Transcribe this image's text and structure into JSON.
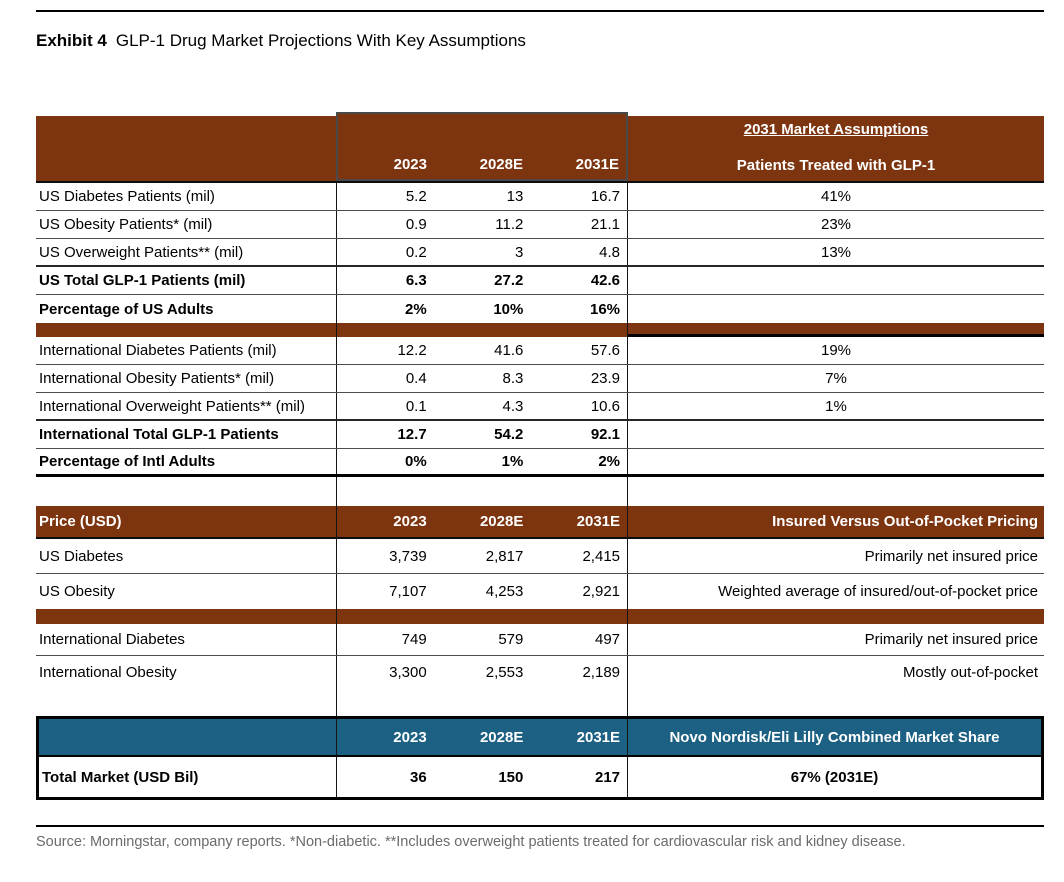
{
  "exhibit": {
    "label": "Exhibit 4",
    "title": "GLP-1 Drug Market Projections With Key Assumptions"
  },
  "columns": {
    "years": [
      "2023",
      "2028E",
      "2031E"
    ]
  },
  "colors": {
    "brick_header": "#7d3510",
    "teal_header": "#1c6083",
    "source_text": "#6b6b6b"
  },
  "patients_section": {
    "assumptions_title": "2031 Market Assumptions",
    "assumptions_subtitle": "Patients Treated with GLP-1",
    "rows": [
      {
        "label": "US Diabetes Patients (mil)",
        "y2023": "5.2",
        "y2028e": "13",
        "y2031e": "16.7",
        "assumption": "41%"
      },
      {
        "label": "US Obesity Patients* (mil)",
        "y2023": "0.9",
        "y2028e": "11.2",
        "y2031e": "21.1",
        "assumption": "23%"
      },
      {
        "label": "US Overweight Patients** (mil)",
        "y2023": "0.2",
        "y2028e": "3",
        "y2031e": "4.8",
        "assumption": "13%"
      },
      {
        "label": "US Total GLP-1 Patients (mil)",
        "y2023": "6.3",
        "y2028e": "27.2",
        "y2031e": "42.6",
        "assumption": ""
      },
      {
        "label": "Percentage of US Adults",
        "y2023": "2%",
        "y2028e": "10%",
        "y2031e": "16%",
        "assumption": ""
      },
      {
        "label": "International Diabetes Patients (mil)",
        "y2023": "12.2",
        "y2028e": "41.6",
        "y2031e": "57.6",
        "assumption": "19%"
      },
      {
        "label": "International Obesity Patients* (mil)",
        "y2023": "0.4",
        "y2028e": "8.3",
        "y2031e": "23.9",
        "assumption": "7%"
      },
      {
        "label": "International Overweight Patients** (mil)",
        "y2023": "0.1",
        "y2028e": "4.3",
        "y2031e": "10.6",
        "assumption": "1%"
      },
      {
        "label": "International Total GLP-1 Patients",
        "y2023": "12.7",
        "y2028e": "54.2",
        "y2031e": "92.1",
        "assumption": ""
      },
      {
        "label": "Percentage of Intl Adults",
        "y2023": "0%",
        "y2028e": "1%",
        "y2031e": "2%",
        "assumption": ""
      }
    ]
  },
  "pricing_section": {
    "header_label": "Price (USD)",
    "assumptions_header": "Insured Versus Out-of-Pocket Pricing",
    "rows": [
      {
        "label": "US Diabetes",
        "y2023": "3,739",
        "y2028e": "2,817",
        "y2031e": "2,415",
        "note": "Primarily net insured price"
      },
      {
        "label": "US Obesity",
        "y2023": "7,107",
        "y2028e": "4,253",
        "y2031e": "2,921",
        "note": "Weighted average of insured/out-of-pocket price"
      },
      {
        "label": "International Diabetes",
        "y2023": "749",
        "y2028e": "579",
        "y2031e": "497",
        "note": "Primarily net insured price"
      },
      {
        "label": "International Obesity",
        "y2023": "3,300",
        "y2028e": "2,553",
        "y2031e": "2,189",
        "note": "Mostly out-of-pocket"
      }
    ]
  },
  "market_section": {
    "share_header": "Novo Nordisk/Eli Lilly Combined Market Share",
    "row": {
      "label": "Total Market (USD Bil)",
      "y2023": "36",
      "y2028e": "150",
      "y2031e": "217",
      "share": "67% (2031E)"
    }
  },
  "source_note": "Source: Morningstar, company reports. *Non-diabetic. **Includes overweight patients treated for cardiovascular risk and kidney disease."
}
